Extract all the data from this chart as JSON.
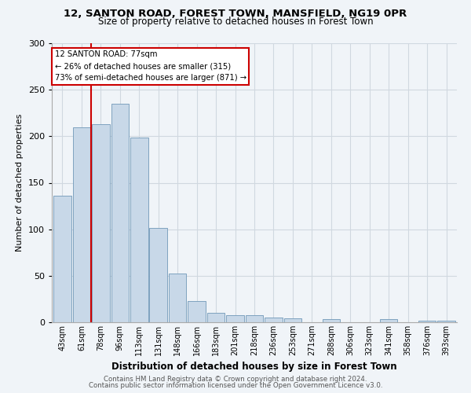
{
  "title1": "12, SANTON ROAD, FOREST TOWN, MANSFIELD, NG19 0PR",
  "title2": "Size of property relative to detached houses in Forest Town",
  "xlabel": "Distribution of detached houses by size in Forest Town",
  "ylabel": "Number of detached properties",
  "footnote1": "Contains HM Land Registry data © Crown copyright and database right 2024.",
  "footnote2": "Contains public sector information licensed under the Open Government Licence v3.0.",
  "annotation_line1": "12 SANTON ROAD: 77sqm",
  "annotation_line2": "← 26% of detached houses are smaller (315)",
  "annotation_line3": "73% of semi-detached houses are larger (871) →",
  "bar_labels": [
    "43sqm",
    "61sqm",
    "78sqm",
    "96sqm",
    "113sqm",
    "131sqm",
    "148sqm",
    "166sqm",
    "183sqm",
    "201sqm",
    "218sqm",
    "236sqm",
    "253sqm",
    "271sqm",
    "288sqm",
    "306sqm",
    "323sqm",
    "341sqm",
    "358sqm",
    "376sqm",
    "393sqm"
  ],
  "bar_values": [
    136,
    210,
    213,
    235,
    199,
    101,
    52,
    23,
    10,
    8,
    8,
    5,
    4,
    0,
    3,
    0,
    0,
    3,
    0,
    2,
    2
  ],
  "bar_color": "#c8d8e8",
  "bar_edge_color": "#7098b8",
  "vline_x": 1.5,
  "vline_color": "#cc0000",
  "annotation_box_color": "#cc0000",
  "ylim": [
    0,
    300
  ],
  "yticks": [
    0,
    50,
    100,
    150,
    200,
    250,
    300
  ],
  "grid_color": "#d0d8e0",
  "bg_color": "#f0f4f8"
}
